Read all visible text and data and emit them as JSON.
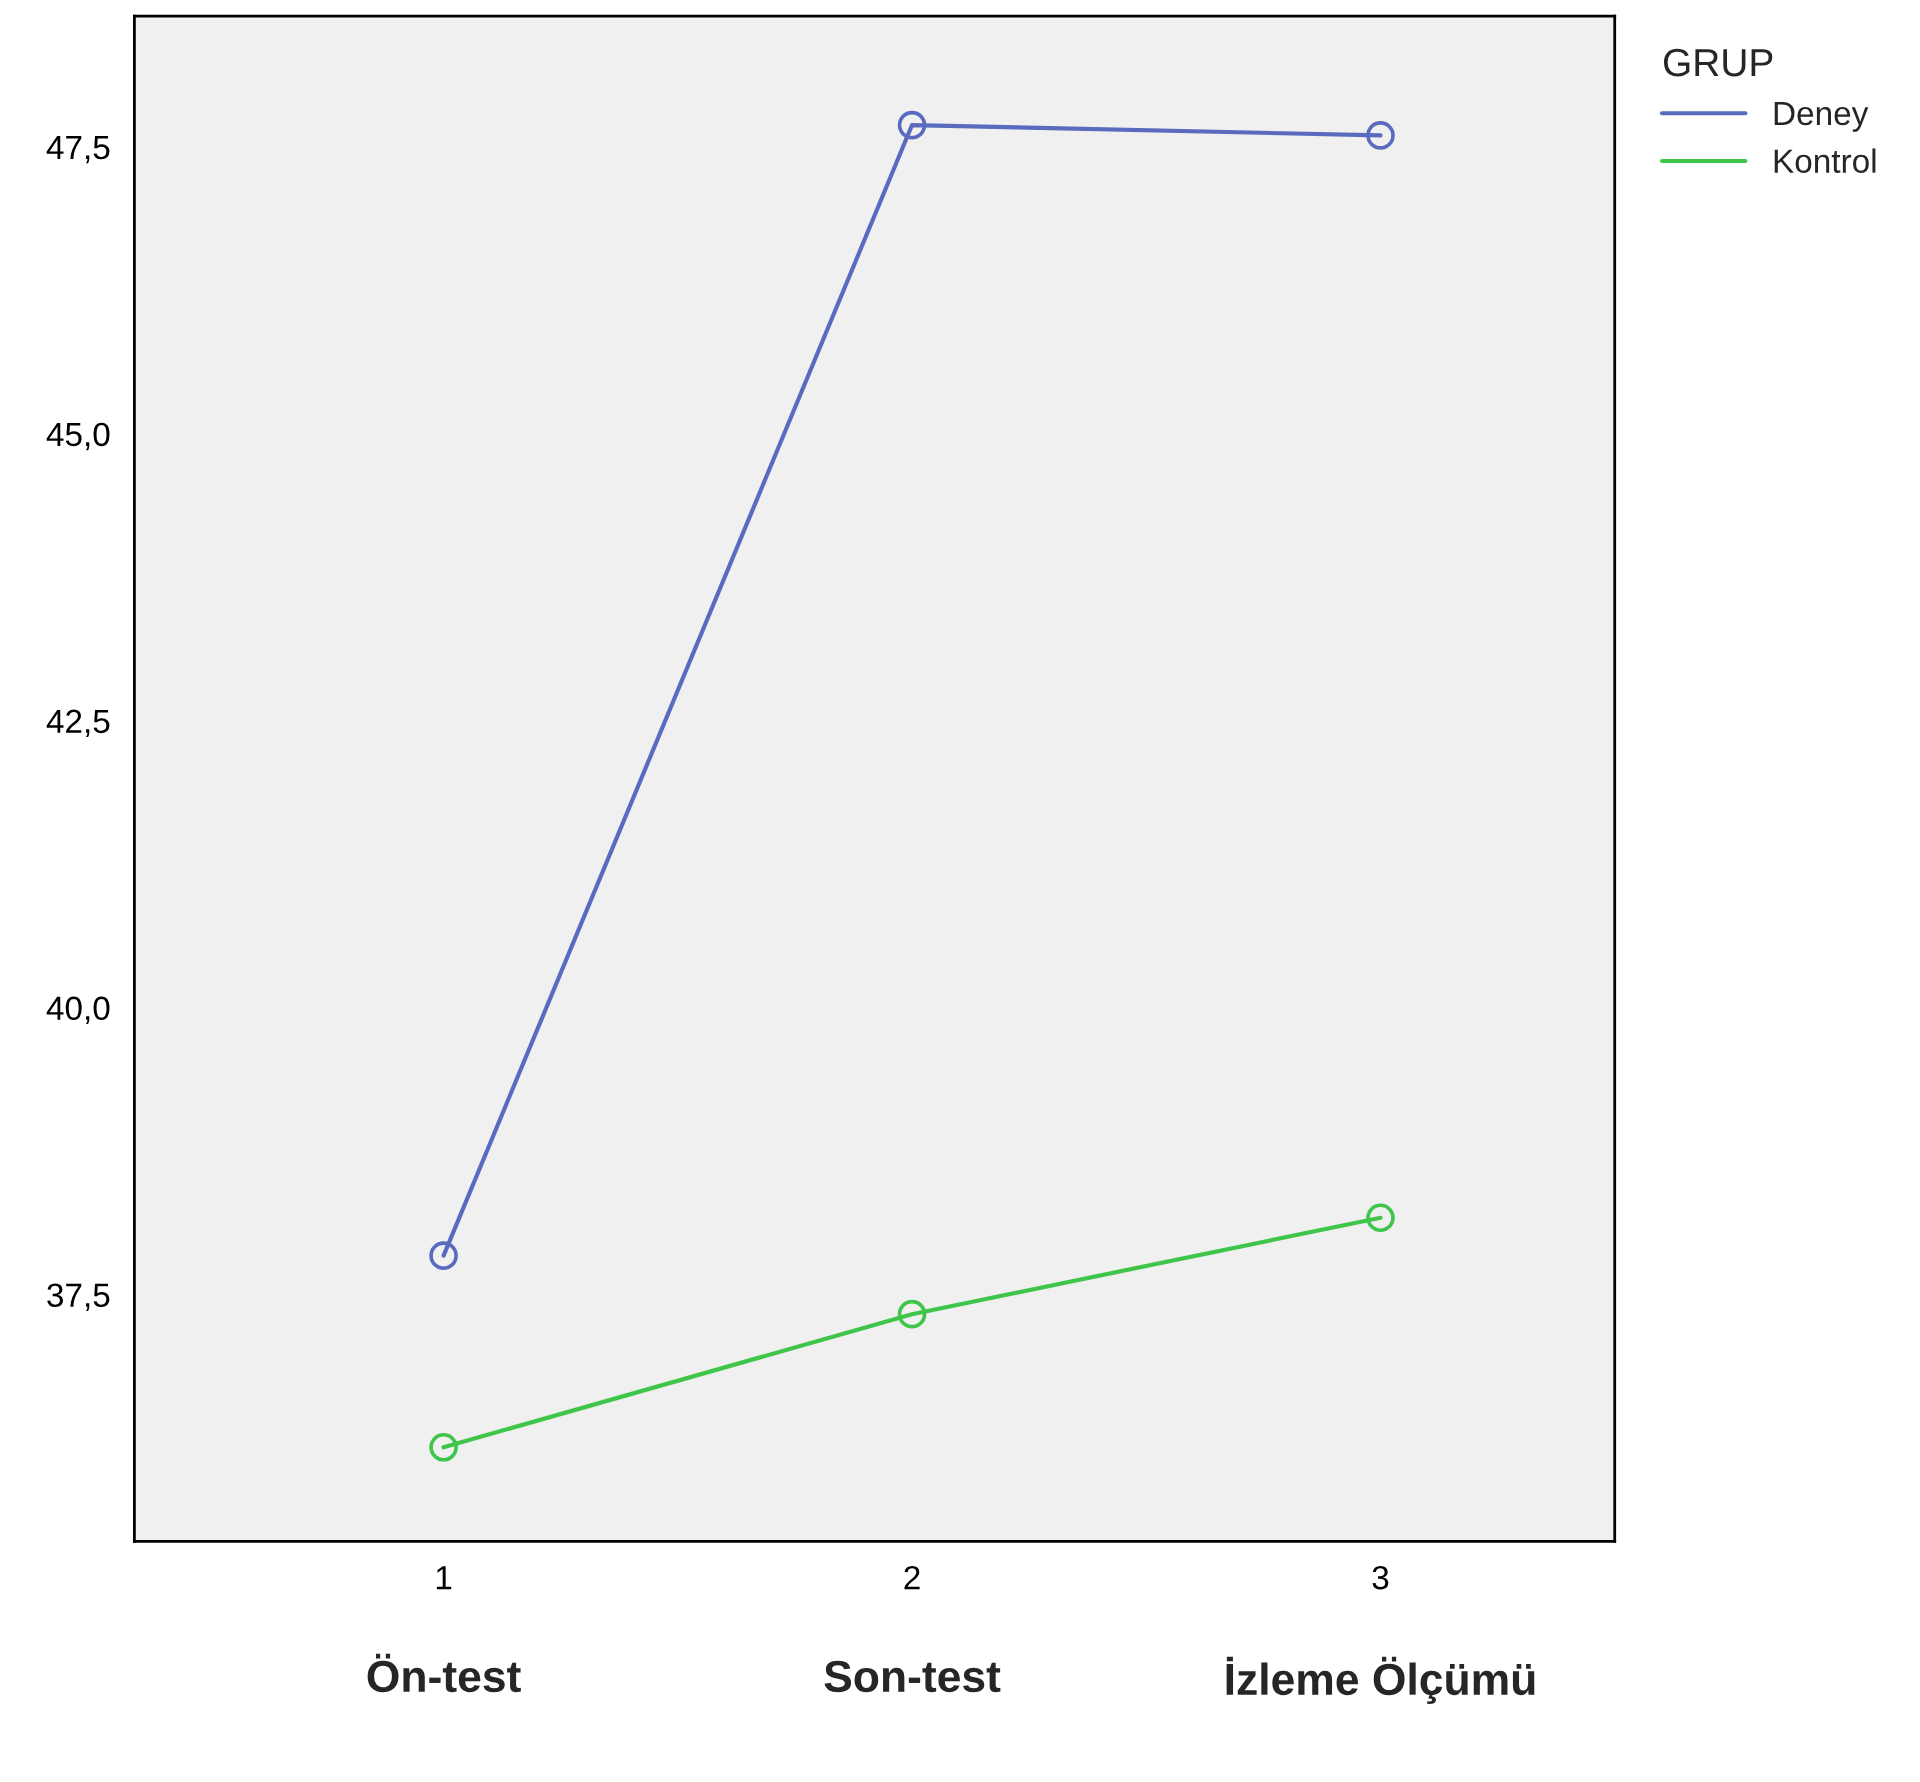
{
  "chart_data": {
    "type": "line",
    "x": [
      1,
      2,
      3
    ],
    "series": [
      {
        "name": "Deney",
        "color": "#5a6bbf",
        "values": [
          37.84,
          47.69,
          47.6
        ]
      },
      {
        "name": "Kontrol",
        "color": "#3fc64a",
        "values": [
          36.17,
          37.33,
          38.17
        ]
      }
    ],
    "xlim": [
      0.34,
      3.5
    ],
    "xticks": [
      1,
      2,
      3
    ],
    "ylim": [
      35.35,
      48.64
    ],
    "yticks": [
      {
        "value": 37.5,
        "label": "37,5"
      },
      {
        "value": 40.0,
        "label": "40,0"
      },
      {
        "value": 42.5,
        "label": "42,5"
      },
      {
        "value": 45.0,
        "label": "45,0"
      },
      {
        "value": 47.5,
        "label": "47,5"
      }
    ],
    "annotations": [
      "Ön-test",
      "Son-test",
      "İzleme Ölçümü"
    ],
    "legend_title": "GRUP",
    "legend": "top right",
    "marker": "circle",
    "line_style": "solid",
    "grid": false
  }
}
